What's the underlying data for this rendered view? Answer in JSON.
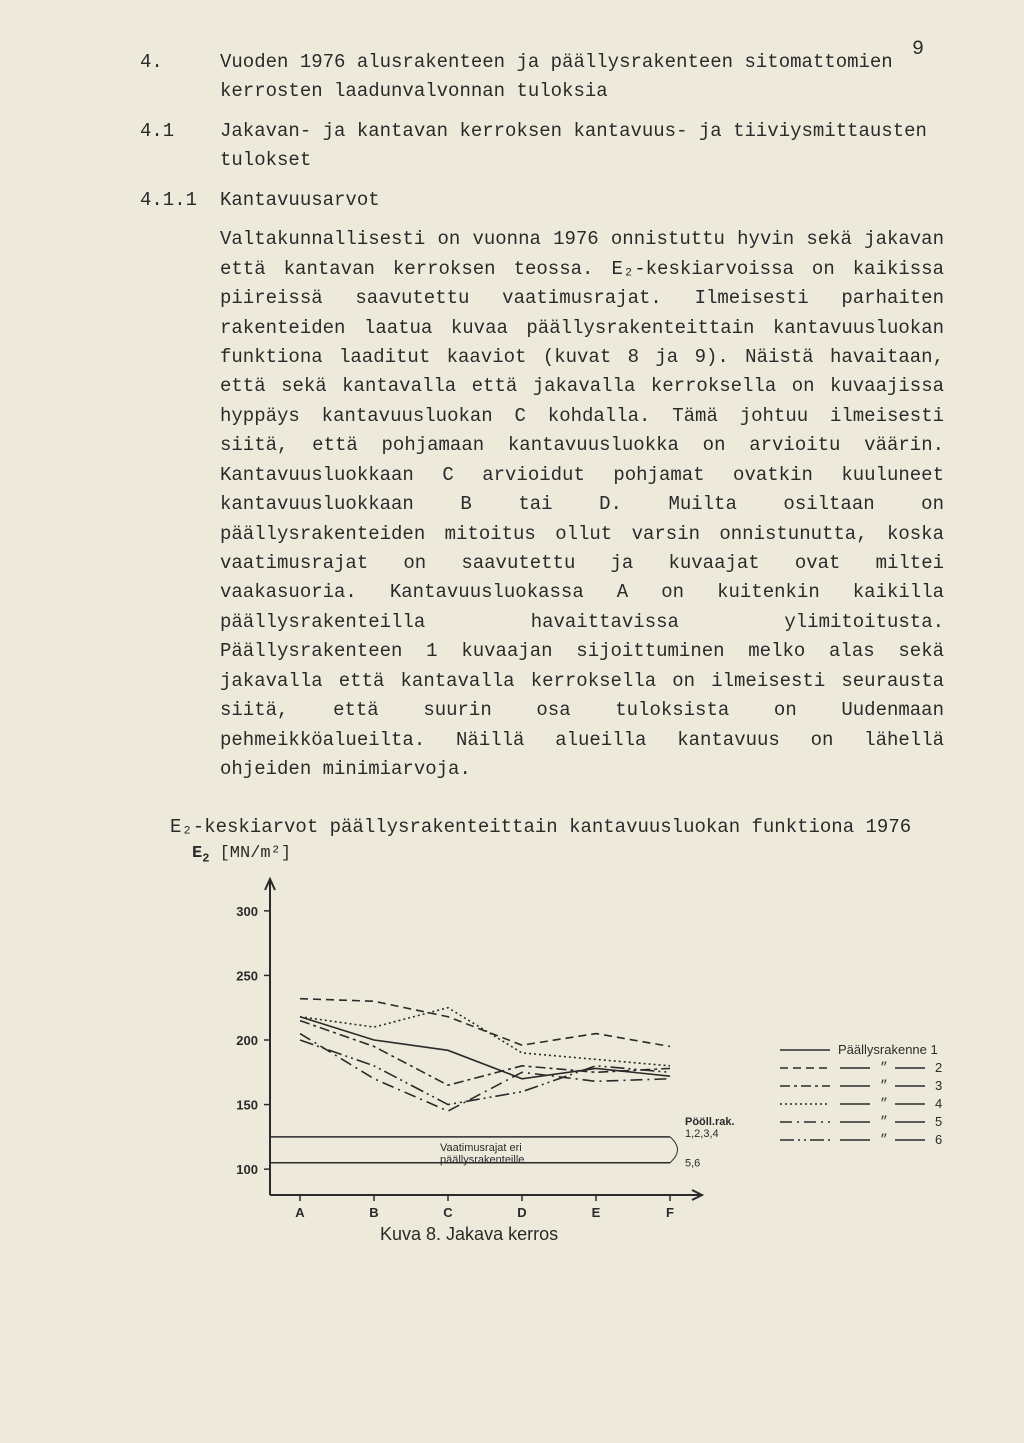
{
  "page_number": "9",
  "sections": [
    {
      "num": "4.",
      "text": "Vuoden 1976 alusrakenteen ja päällysrakenteen sitomattomien kerrosten laadunvalvonnan tuloksia"
    },
    {
      "num": "4.1",
      "text": "Jakavan- ja kantavan kerroksen kantavuus- ja tiiviysmittausten tulokset"
    },
    {
      "num": "4.1.1",
      "text": "Kantavuusarvot"
    }
  ],
  "body_text": "Valtakunnallisesti on vuonna 1976 onnistuttu hyvin sekä jakavan että kantavan kerroksen teossa. E₂-keskiarvoissa on kaikissa piireissä saavutettu vaatimusrajat. Ilmeisesti parhaiten rakenteiden laatua kuvaa päällysrakenteittain kantavuusluokan funktiona laaditut kaaviot (kuvat 8 ja 9). Näistä havaitaan, että sekä kantavalla että jakavalla kerroksella on kuvaajissa hyppäys kantavuusluokan C kohdalla. Tämä johtuu ilmeisesti siitä, että pohjamaan kantavuusluokka on arvioitu väärin. Kantavuusluokkaan C arvioidut pohjamat ovatkin kuuluneet kantavuusluokkaan B tai D. Muilta osiltaan on päällysrakenteiden mitoitus ollut varsin onnistunutta, koska vaatimusrajat on saavutettu ja kuvaajat ovat miltei vaakasuoria. Kantavuusluokassa A on kuitenkin kaikilla päällysrakenteilla havaittavissa ylimitoitusta. Päällysrakenteen 1 kuvaajan sijoittuminen melko alas sekä jakavalla että kantavalla kerroksella on ilmeisesti seurausta siitä, että suurin osa tuloksista on Uudenmaan pehmeikköalueilta. Näillä alueilla kantavuus on lähellä ohjeiden minimiarvoja.",
  "chart": {
    "title": "E₂-keskiarvot päällysrakenteittain kantavuusluokan funktiona 1976",
    "y_axis_label": "E₂ [MN/m²]",
    "type": "line",
    "x_categories": [
      "A",
      "B",
      "C",
      "D",
      "E",
      "F"
    ],
    "y_ticks": [
      100,
      150,
      200,
      250,
      300
    ],
    "ylim": [
      80,
      320
    ],
    "grid": false,
    "background_color": "#eeeadb",
    "axis_color": "#2a2a2a",
    "line_width": 1.6,
    "series": [
      {
        "name": "Päällysrakenne 1",
        "dash": "",
        "values": [
          218,
          200,
          192,
          170,
          178,
          172
        ]
      },
      {
        "name": "2",
        "dash": "8 5",
        "values": [
          232,
          230,
          218,
          196,
          205,
          195
        ]
      },
      {
        "name": "3",
        "dash": "10 4 3 4",
        "values": [
          215,
          195,
          165,
          180,
          175,
          178
        ]
      },
      {
        "name": "4",
        "dash": "2 3",
        "values": [
          218,
          210,
          225,
          190,
          185,
          180
        ]
      },
      {
        "name": "5",
        "dash": "12 5 2 5",
        "values": [
          205,
          170,
          145,
          175,
          168,
          170
        ]
      },
      {
        "name": "6",
        "dash": "14 4 2 4 2 4",
        "values": [
          200,
          180,
          150,
          160,
          180,
          175
        ]
      }
    ],
    "requirement_lines": {
      "label": "Vaatimusrajat eri päällysrakenteille",
      "top": {
        "y": 125,
        "label": "Pööll.rak.",
        "sub": "1,2,3,4"
      },
      "bottom": {
        "y": 105,
        "sub": "5,6"
      }
    },
    "caption_left": "Kuva 8.",
    "caption_right": "Jakava kerros",
    "font_size_axis": 13,
    "font_size_legend": 13,
    "font_size_small": 11
  }
}
